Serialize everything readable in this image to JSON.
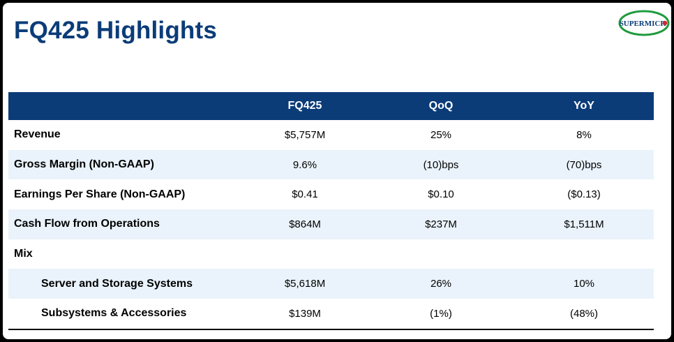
{
  "slide": {
    "title": "FQ425 Highlights",
    "brand_color": "#0b3c78",
    "row_shade_color": "#eaf3fb"
  },
  "logo": {
    "text": "SUPERMICR",
    "ring_color": "#1f9a3e",
    "dot_color": "#d7262b",
    "text_color": "#0b3c78"
  },
  "table": {
    "columns": [
      "",
      "FQ425",
      "QoQ",
      "YoY"
    ],
    "rows": [
      {
        "label": "Revenue",
        "fq": "$5,757M",
        "qoq": "25%",
        "yoy": "8%"
      },
      {
        "label": "Gross Margin (Non-GAAP)",
        "fq": "9.6%",
        "qoq": "(10)bps",
        "yoy": "(70)bps"
      },
      {
        "label": "Earnings Per Share (Non-GAAP)",
        "fq": "$0.41",
        "qoq": "$0.10",
        "yoy": "($0.13)"
      },
      {
        "label": "Cash Flow from Operations",
        "fq": "$864M",
        "qoq": "$237M",
        "yoy": "$1,511M"
      },
      {
        "label": "Mix",
        "fq": "",
        "qoq": "",
        "yoy": ""
      },
      {
        "label": "Server and Storage Systems",
        "fq": "$5,618M",
        "qoq": "26%",
        "yoy": "10%"
      },
      {
        "label": "Subsystems & Accessories",
        "fq": "$139M",
        "qoq": "(1%)",
        "yoy": "(48%)"
      }
    ]
  }
}
